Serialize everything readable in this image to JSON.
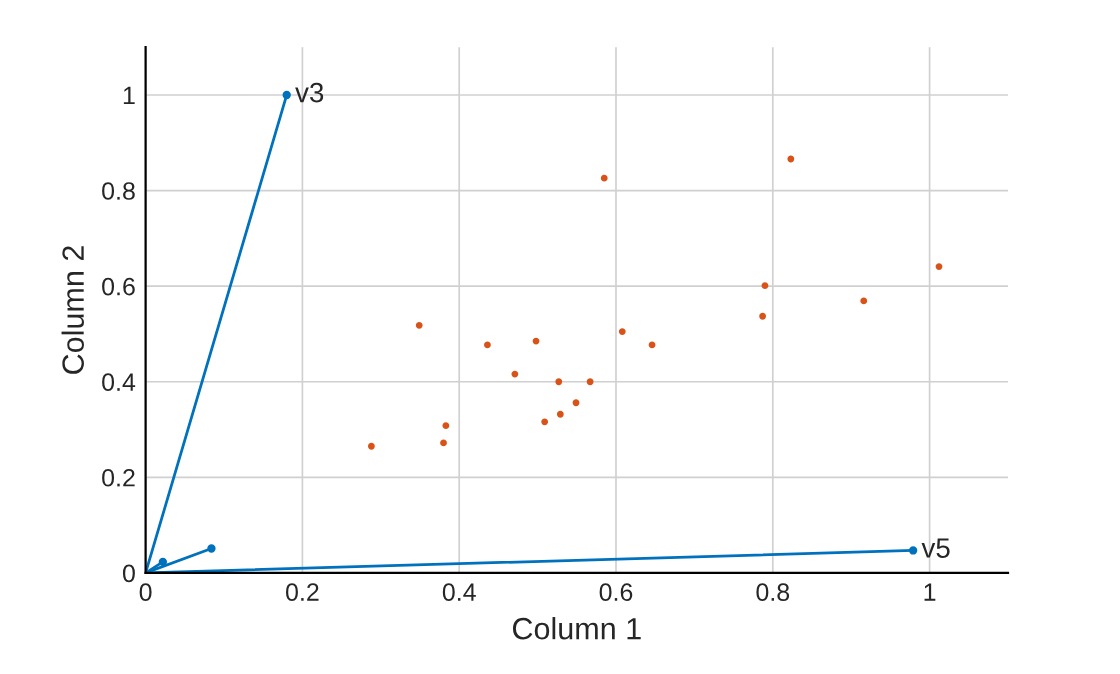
{
  "chart_data": {
    "type": "scatter",
    "xlabel": "Column 1",
    "ylabel": "Column 2",
    "xlim": [
      0,
      1.1
    ],
    "ylim": [
      0,
      1.1
    ],
    "xticks": [
      0,
      0.2,
      0.4,
      0.6,
      0.8,
      1
    ],
    "yticks": [
      0,
      0.2,
      0.4,
      0.6,
      0.8,
      1
    ],
    "grid": true,
    "marker": "circle",
    "series": [
      {
        "type": "line",
        "color": "#0072bd",
        "x": [
          0,
          0.18
        ],
        "values": [
          0,
          1.0
        ]
      },
      {
        "type": "line",
        "color": "#0072bd",
        "x": [
          0,
          0.979
        ],
        "values": [
          0,
          0.047
        ]
      },
      {
        "type": "line",
        "color": "#0072bd",
        "x": [
          0,
          0.084
        ],
        "values": [
          0,
          0.051
        ]
      },
      {
        "type": "line",
        "color": "#0072bd",
        "x": [
          0,
          0.022
        ],
        "values": [
          0,
          0.023
        ]
      },
      {
        "color": "#d95319",
        "x": [
          0.288,
          0.349,
          0.383,
          0.38,
          0.436,
          0.498,
          0.471,
          0.509,
          0.527,
          0.529,
          0.549,
          0.567,
          0.585,
          0.608,
          0.646,
          0.79,
          0.787,
          0.823,
          0.916,
          1.012
        ],
        "values": [
          0.265,
          0.518,
          0.308,
          0.272,
          0.477,
          0.485,
          0.416,
          0.316,
          0.4,
          0.332,
          0.356,
          0.4,
          0.826,
          0.505,
          0.477,
          0.601,
          0.537,
          0.866,
          0.569,
          0.641
        ]
      }
    ],
    "annotations": [
      {
        "text": "v3",
        "x": 0.18,
        "y": 1.0
      },
      {
        "text": "v5",
        "x": 0.979,
        "y": 0.047
      }
    ]
  }
}
